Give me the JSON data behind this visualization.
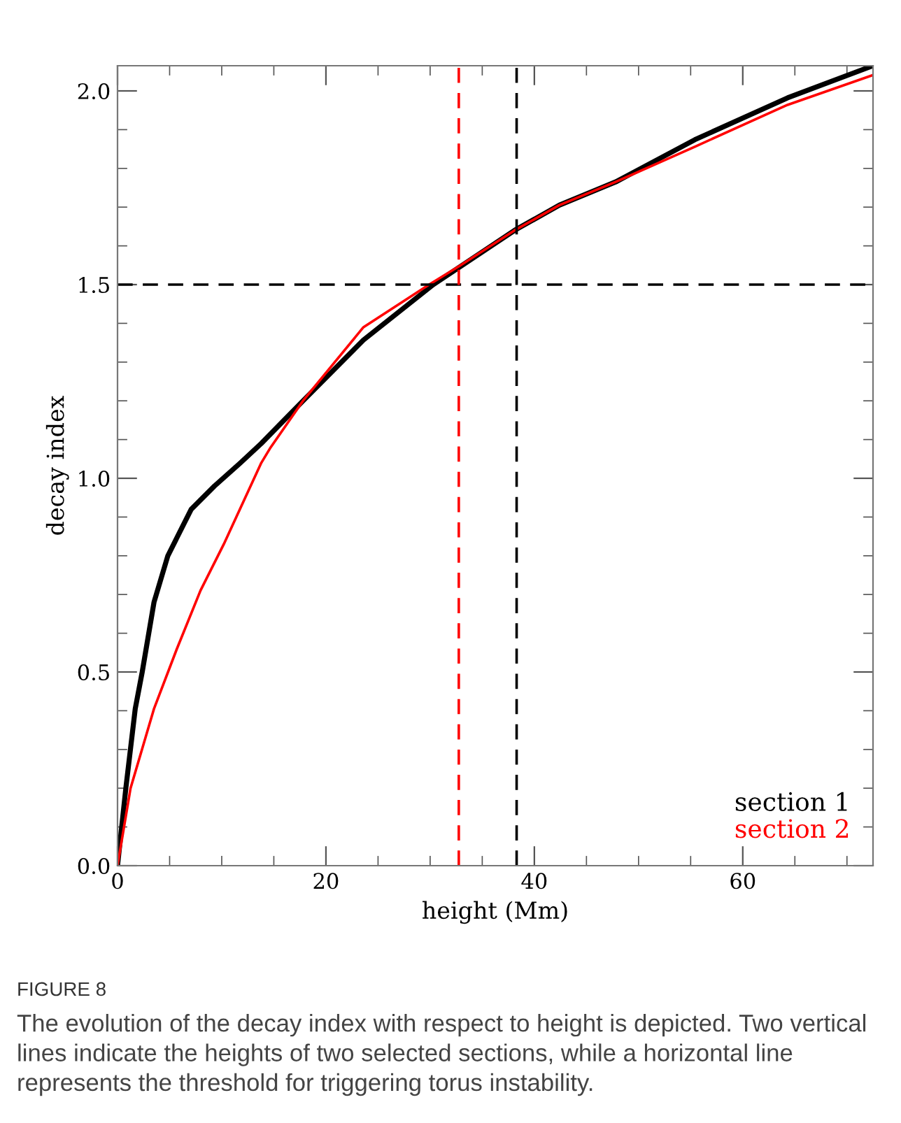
{
  "chart_data": {
    "type": "line",
    "xlabel": "height (Mm)",
    "ylabel": "decay index",
    "xlim": [
      0,
      72.5
    ],
    "ylim": [
      0,
      2.065
    ],
    "xticks": [
      0,
      20,
      40,
      60
    ],
    "yticks": [
      {
        "value": 0,
        "label": "0.0"
      },
      {
        "value": 0.5,
        "label": "0.5"
      },
      {
        "value": 1.0,
        "label": "1.0"
      },
      {
        "value": 1.5,
        "label": "1.5"
      },
      {
        "value": 2.0,
        "label": "2.0"
      }
    ],
    "series": [
      {
        "name": "section 1",
        "color": "#000000",
        "x": [
          0,
          0.8,
          1.7,
          2.37,
          3.5,
          4.83,
          7.07,
          9.3,
          11.8,
          13.8,
          17.8,
          23.6,
          30.3,
          38.1,
          42.4,
          47.8,
          55.4,
          64.3,
          72.4
        ],
        "values": [
          0,
          0.2,
          0.405,
          0.5,
          0.68,
          0.8,
          0.92,
          0.98,
          1.04,
          1.09,
          1.2,
          1.357,
          1.5,
          1.64,
          1.705,
          1.765,
          1.874,
          1.982,
          2.064
        ]
      },
      {
        "name": "section 2",
        "color": "#ff0000",
        "x": [
          0,
          1.25,
          3.5,
          5.7,
          7.96,
          10.2,
          13.8,
          14.7,
          17.8,
          23.6,
          29.9,
          32.8,
          38.1,
          42.4,
          47.8,
          55.4,
          64.3,
          72.4
        ],
        "values": [
          0,
          0.2,
          0.405,
          0.56,
          0.71,
          0.83,
          1.04,
          1.08,
          1.2,
          1.39,
          1.5,
          1.548,
          1.64,
          1.705,
          1.765,
          1.856,
          1.964,
          2.04
        ]
      }
    ],
    "ref_lines": [
      {
        "axis": "y",
        "value": 1.5,
        "color": "#000000",
        "line_style": "dashed"
      },
      {
        "axis": "x",
        "value": 32.75,
        "color": "#ff0000",
        "line_style": "dashed"
      },
      {
        "axis": "x",
        "value": 38.3,
        "color": "#000000",
        "line_style": "dashed"
      }
    ],
    "legend": "bottom right",
    "grid": false,
    "annotations": [
      "FIGURE 8",
      "The evolution of the decay index with respect to height is depicted. Two vertical lines indicate the heights of two selected sections, while a horizontal line represents the threshold for triggering torus instability."
    ]
  }
}
